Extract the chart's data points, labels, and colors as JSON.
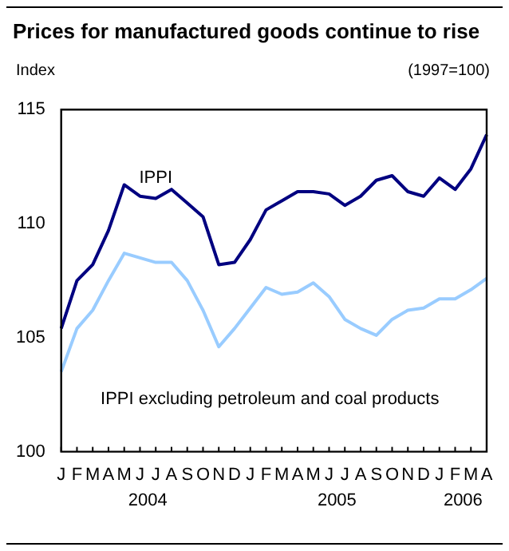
{
  "chart_data": {
    "type": "line",
    "title": "Prices for manufactured goods continue to rise",
    "subtitle": "(1997=100)",
    "ylabel": "Index",
    "categories": [
      "J",
      "F",
      "M",
      "A",
      "M",
      "J",
      "J",
      "A",
      "S",
      "O",
      "N",
      "D",
      "J",
      "F",
      "M",
      "A",
      "M",
      "J",
      "J",
      "A",
      "S",
      "O",
      "N",
      "D",
      "J",
      "F",
      "M",
      "A"
    ],
    "series": [
      {
        "name": "IPPI",
        "color": "#000080",
        "values": [
          105.4,
          107.5,
          108.2,
          109.7,
          111.7,
          111.2,
          111.1,
          111.5,
          110.9,
          110.3,
          108.2,
          108.3,
          109.3,
          110.6,
          111.0,
          111.4,
          111.4,
          111.3,
          110.8,
          111.2,
          111.9,
          112.1,
          111.4,
          111.2,
          112.0,
          111.5,
          112.4,
          113.9
        ]
      },
      {
        "name": "IPPI excluding petroleum and coal products",
        "color": "#99ccff",
        "values": [
          103.5,
          105.4,
          106.2,
          107.5,
          108.7,
          108.5,
          108.3,
          108.3,
          107.5,
          106.2,
          104.6,
          105.4,
          106.3,
          107.2,
          106.9,
          107.0,
          107.4,
          106.8,
          105.8,
          105.4,
          105.1,
          105.8,
          106.2,
          106.3,
          106.7,
          106.7,
          107.1,
          107.6
        ]
      }
    ],
    "annotations": [
      "2004",
      "2005",
      "2006"
    ],
    "ylim": [
      100,
      115
    ],
    "yticks": [
      100,
      105,
      110,
      115
    ],
    "grid": false,
    "legend": false,
    "marker": "none",
    "line_style": "solid"
  }
}
